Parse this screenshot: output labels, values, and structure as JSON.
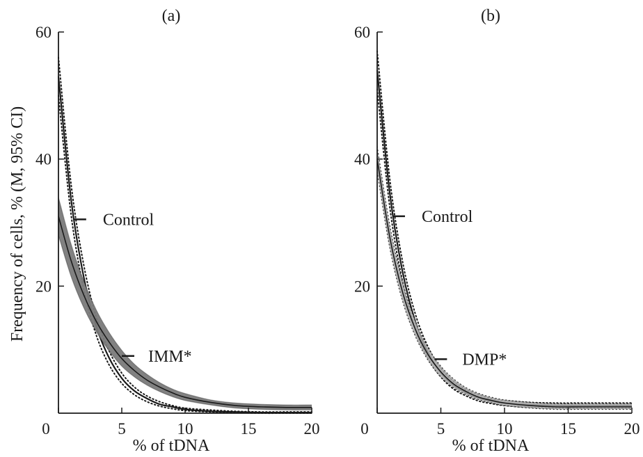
{
  "figure": {
    "ylabel": "Frequency of cells, % (M, 95% CI)",
    "xlabel": "% of tDNA",
    "colors": {
      "ink": "#1a1a1a",
      "band_dark": "#7a7a7a",
      "band_light": "#a9a9a9",
      "background": "#ffffff"
    }
  },
  "chart_data": [
    {
      "type": "line",
      "panel_label": "(a)",
      "xlabel": "% of tDNA",
      "ylabel": "Frequency of cells, % (M, 95% CI)",
      "xlim": [
        0,
        20
      ],
      "ylim": [
        0,
        60
      ],
      "xticks": [
        "0",
        "5",
        "10",
        "15",
        "20"
      ],
      "yticks": [
        "20",
        "40",
        "60"
      ],
      "x": [
        0,
        1,
        2,
        3,
        4,
        5,
        6,
        7,
        8,
        9,
        10,
        12,
        14,
        16,
        18,
        20
      ],
      "series": [
        {
          "name": "Control",
          "style": "solid black line with dotted 95% CI",
          "values": [
            53,
            33.6,
            21.4,
            13.6,
            8.7,
            5.5,
            3.5,
            2.3,
            1.4,
            1.0,
            0.6,
            0.3,
            0.2,
            0.1,
            0.1,
            0.1
          ],
          "ci_lower": [
            50,
            31.2,
            19.5,
            12.2,
            7.6,
            4.7,
            2.9,
            1.8,
            1.1,
            0.7,
            0.4,
            0.2,
            0.1,
            0.0,
            0.0,
            0.0
          ],
          "ci_upper": [
            56,
            36.0,
            23.3,
            15.0,
            9.8,
            6.3,
            4.1,
            2.7,
            1.8,
            1.2,
            0.8,
            0.5,
            0.3,
            0.2,
            0.2,
            0.2
          ]
        },
        {
          "name": "IMM*",
          "style": "solid line with dark grey shaded 95% CI",
          "values": [
            31,
            24.0,
            18.6,
            14.4,
            11.2,
            8.6,
            6.7,
            5.2,
            4.1,
            3.2,
            2.5,
            1.7,
            1.2,
            1.0,
            0.9,
            0.9
          ],
          "ci_lower": [
            28,
            21.5,
            16.6,
            12.8,
            9.8,
            7.4,
            5.7,
            4.4,
            3.4,
            2.6,
            2.0,
            1.3,
            0.8,
            0.6,
            0.5,
            0.5
          ],
          "ci_upper": [
            34,
            26.6,
            20.8,
            16.2,
            12.7,
            9.9,
            7.7,
            6.1,
            4.8,
            3.8,
            3.1,
            2.1,
            1.6,
            1.4,
            1.3,
            1.3
          ]
        }
      ],
      "annotations": [
        {
          "text": "Control",
          "x": 1.2,
          "y": 30.5
        },
        {
          "text": "IMM*",
          "x": 5.0,
          "y": 9.0
        }
      ]
    },
    {
      "type": "line",
      "panel_label": "(b)",
      "xlabel": "% of tDNA",
      "xlim": [
        0,
        20
      ],
      "ylim": [
        0,
        60
      ],
      "xticks": [
        "0",
        "5",
        "10",
        "15",
        "20"
      ],
      "yticks": [
        "20",
        "40",
        "60"
      ],
      "x": [
        0,
        1,
        2,
        3,
        4,
        5,
        6,
        7,
        8,
        9,
        10,
        12,
        14,
        16,
        18,
        20
      ],
      "series": [
        {
          "name": "Control",
          "style": "solid black line with dotted 95% CI",
          "values": [
            54,
            34.5,
            22.2,
            14.4,
            9.5,
            6.4,
            4.4,
            3.2,
            2.4,
            1.9,
            1.6,
            1.3,
            1.2,
            1.2,
            1.2,
            1.2
          ],
          "ci_lower": [
            51,
            32.3,
            20.6,
            13.2,
            8.6,
            5.7,
            3.8,
            2.7,
            1.9,
            1.5,
            1.2,
            0.9,
            0.8,
            0.8,
            0.8,
            0.8
          ],
          "ci_upper": [
            57,
            36.7,
            23.8,
            15.6,
            10.4,
            7.1,
            5.0,
            3.7,
            2.9,
            2.3,
            2.0,
            1.7,
            1.6,
            1.6,
            1.6,
            1.6
          ]
        },
        {
          "name": "DMP*",
          "style": "solid line with light grey shaded 95% CI",
          "values": [
            40,
            27.6,
            19.0,
            13.2,
            9.2,
            6.5,
            4.6,
            3.4,
            2.5,
            2.0,
            1.6,
            1.2,
            1.0,
            1.0,
            1.0,
            1.0
          ],
          "ci_lower": [
            38,
            25.9,
            17.6,
            12.1,
            8.3,
            5.7,
            4.0,
            2.9,
            2.1,
            1.6,
            1.2,
            0.8,
            0.6,
            0.6,
            0.6,
            0.6
          ],
          "ci_upper": [
            42,
            29.5,
            20.6,
            14.5,
            10.3,
            7.4,
            5.4,
            4.0,
            3.1,
            2.5,
            2.1,
            1.7,
            1.5,
            1.5,
            1.5,
            1.5
          ]
        }
      ],
      "annotations": [
        {
          "text": "Control",
          "x": 1.2,
          "y": 31.0
        },
        {
          "text": "DMP*",
          "x": 4.5,
          "y": 8.5
        }
      ]
    }
  ]
}
